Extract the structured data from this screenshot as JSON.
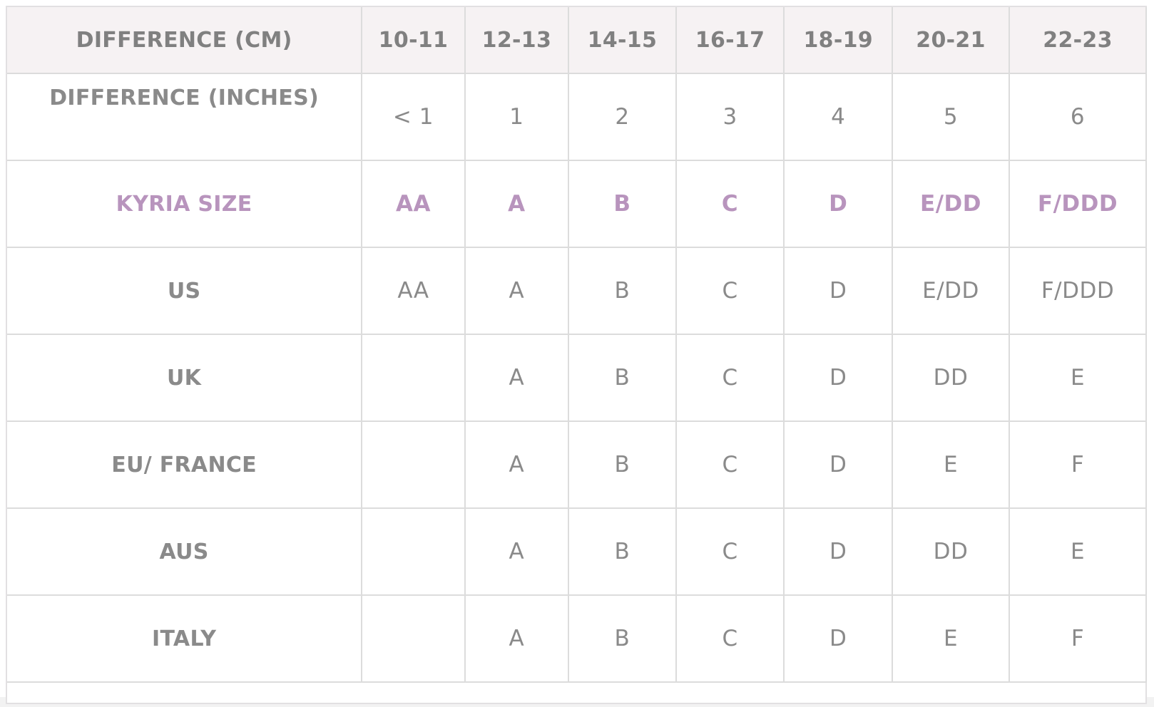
{
  "table": {
    "header_label": "DIFFERENCE (CM)",
    "columns": [
      "10-11",
      "12-13",
      "14-15",
      "16-17",
      "18-19",
      "20-21",
      "22-23"
    ],
    "rows": [
      {
        "label": "DIFFERENCE (INCHES)",
        "cells": [
          "< 1",
          "1",
          "2",
          "3",
          "4",
          "5",
          "6"
        ]
      },
      {
        "label": "KYRIA SIZE",
        "cells": [
          "AA",
          "A",
          "B",
          "C",
          "D",
          "E/DD",
          "F/DDD"
        ]
      },
      {
        "label": "US",
        "cells": [
          "AA",
          "A",
          "B",
          "C",
          "D",
          "E/DD",
          "F/DDD"
        ]
      },
      {
        "label": "UK",
        "cells": [
          "",
          "A",
          "B",
          "C",
          "D",
          "DD",
          "E"
        ]
      },
      {
        "label": "EU/ FRANCE",
        "cells": [
          "",
          "A",
          "B",
          "C",
          "D",
          "E",
          "F"
        ]
      },
      {
        "label": "AUS",
        "cells": [
          "",
          "A",
          "B",
          "C",
          "D",
          "DD",
          "E"
        ]
      },
      {
        "label": "ITALY",
        "cells": [
          "",
          "A",
          "B",
          "C",
          "D",
          "E",
          "F"
        ]
      }
    ]
  },
  "colors": {
    "header_background": "#f6f2f3",
    "accent_kyria": "#b894bd",
    "text_gray": "#8a8a8a",
    "grid_lines": "#dcdcdc"
  }
}
